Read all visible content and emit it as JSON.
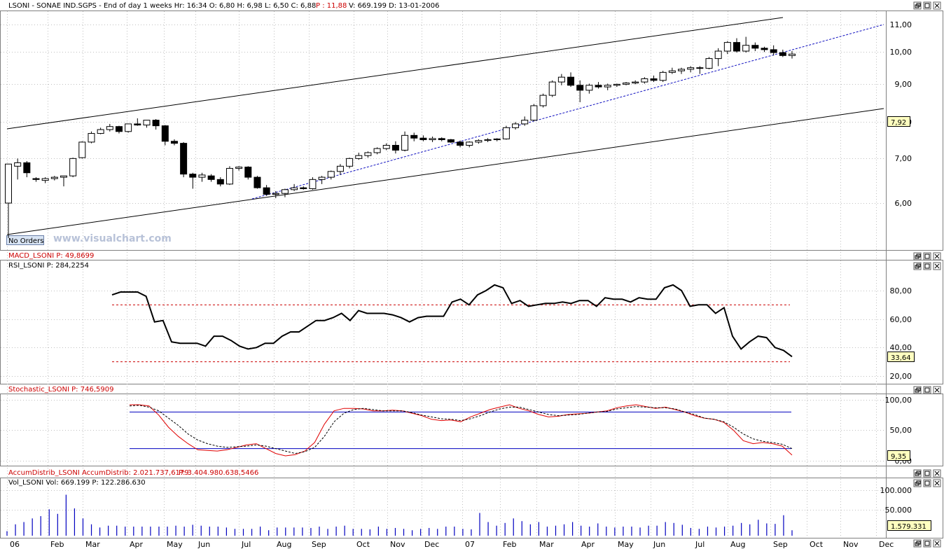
{
  "header": {
    "main": "LSONI - SONAE IND.SGPS - End of day 1 weeks Hr: 16:34  O: 6,80  H: 6,98  L: 6,50  C: 6,88",
    "main_p": "P : 11,88",
    "main_rest": "V: 669.199  D: 13-01-2006",
    "macd": "MACD_LSONI  P: 49,8699",
    "rsi": "RSI_LSONI  P: 284,2254",
    "stoch": "Stochastic_LSONI  P: 746,5909",
    "accum_a": "AccumDistrib_LSONI  AccumDistrib: 2.021.737,6179",
    "accum_b": "P: 3.404.980.638,5466",
    "vol": "Vol_LSONI  Vol: 669.199   P: 122.286.630"
  },
  "watermark": "www.visualchart.com",
  "no_orders": "No Orders",
  "colors": {
    "up_candle": "#ffffff",
    "down_candle": "#000000",
    "channel": "#000000",
    "dotted_trend": "#1010c0",
    "rsi_line": "#000000",
    "rsi_levels": "#cc0000",
    "stoch_k": "#e00000",
    "stoch_d": "#000000",
    "stoch_levels": "#0000c0",
    "volume": "#0000c0",
    "last_value_bg": "#ffffc0"
  },
  "x_labels": [
    "06",
    "Feb",
    "Mar",
    "Apr",
    "May",
    "Jun",
    "Jul",
    "Aug",
    "Sep",
    "Oct",
    "Nov",
    "Dec",
    "07",
    "Feb",
    "Mar",
    "Apr",
    "May",
    "Jun",
    "Jul",
    "Aug",
    "Sep",
    "Oct",
    "Nov",
    "Dec"
  ],
  "chart_data": [
    {
      "type": "candlestick",
      "title": "LSONI - SONAE IND.SGPS",
      "y_scale": "log",
      "ylim": [
        5.3,
        11.4
      ],
      "y_ticks": [
        "11,00",
        "10,00",
        "9,00",
        "8,00",
        "7,00",
        "6,00"
      ],
      "last_value": "7,92",
      "ohlc": [
        [
          6.0,
          6.8,
          5.33,
          6.85
        ],
        [
          6.8,
          6.98,
          6.5,
          6.88
        ],
        [
          6.88,
          6.92,
          6.55,
          6.65
        ],
        [
          6.52,
          6.55,
          6.45,
          6.5
        ],
        [
          6.48,
          6.55,
          6.42,
          6.52
        ],
        [
          6.52,
          6.58,
          6.48,
          6.55
        ],
        [
          6.55,
          6.58,
          6.35,
          6.58
        ],
        [
          6.58,
          7.0,
          6.55,
          6.98
        ],
        [
          7.0,
          7.4,
          6.98,
          7.38
        ],
        [
          7.38,
          7.65,
          7.35,
          7.6
        ],
        [
          7.6,
          7.75,
          7.58,
          7.7
        ],
        [
          7.7,
          7.85,
          7.65,
          7.78
        ],
        [
          7.78,
          7.8,
          7.6,
          7.65
        ],
        [
          7.65,
          7.85,
          7.62,
          7.85
        ],
        [
          7.85,
          8.0,
          7.8,
          7.82
        ],
        [
          7.82,
          7.95,
          7.75,
          7.95
        ],
        [
          7.95,
          7.98,
          7.7,
          7.8
        ],
        [
          7.8,
          7.82,
          7.3,
          7.4
        ],
        [
          7.4,
          7.45,
          7.3,
          7.35
        ],
        [
          7.35,
          7.38,
          6.55,
          6.62
        ],
        [
          6.62,
          6.65,
          6.3,
          6.55
        ],
        [
          6.55,
          6.65,
          6.45,
          6.6
        ],
        [
          6.58,
          6.62,
          6.45,
          6.5
        ],
        [
          6.5,
          6.55,
          6.35,
          6.4
        ],
        [
          6.4,
          6.8,
          6.38,
          6.75
        ],
        [
          6.75,
          6.8,
          6.7,
          6.78
        ],
        [
          6.78,
          6.8,
          6.5,
          6.55
        ],
        [
          6.55,
          6.58,
          6.3,
          6.32
        ],
        [
          6.32,
          6.38,
          6.15,
          6.18
        ],
        [
          6.18,
          6.25,
          6.1,
          6.2
        ],
        [
          6.2,
          6.3,
          6.12,
          6.28
        ],
        [
          6.28,
          6.4,
          6.25,
          6.32
        ],
        [
          6.32,
          6.35,
          6.28,
          6.3
        ],
        [
          6.3,
          6.55,
          6.28,
          6.5
        ],
        [
          6.5,
          6.58,
          6.4,
          6.55
        ],
        [
          6.55,
          6.7,
          6.5,
          6.68
        ],
        [
          6.68,
          6.85,
          6.6,
          6.8
        ],
        [
          6.8,
          7.0,
          6.75,
          6.98
        ],
        [
          6.98,
          7.12,
          6.95,
          7.05
        ],
        [
          7.05,
          7.15,
          7.0,
          7.12
        ],
        [
          7.12,
          7.25,
          7.08,
          7.22
        ],
        [
          7.22,
          7.35,
          7.18,
          7.3
        ],
        [
          7.3,
          7.4,
          7.1,
          7.18
        ],
        [
          7.18,
          7.65,
          7.15,
          7.55
        ],
        [
          7.55,
          7.62,
          7.4,
          7.48
        ],
        [
          7.48,
          7.55,
          7.4,
          7.44
        ],
        [
          7.44,
          7.52,
          7.38,
          7.47
        ],
        [
          7.47,
          7.5,
          7.4,
          7.44
        ],
        [
          7.44,
          7.46,
          7.36,
          7.38
        ],
        [
          7.38,
          7.42,
          7.25,
          7.3
        ],
        [
          7.3,
          7.4,
          7.25,
          7.38
        ],
        [
          7.38,
          7.45,
          7.34,
          7.42
        ],
        [
          7.42,
          7.48,
          7.38,
          7.44
        ],
        [
          7.44,
          7.48,
          7.4,
          7.46
        ],
        [
          7.46,
          7.8,
          7.44,
          7.75
        ],
        [
          7.75,
          7.9,
          7.7,
          7.85
        ],
        [
          7.85,
          8.05,
          7.8,
          7.95
        ],
        [
          7.95,
          8.4,
          7.92,
          8.35
        ],
        [
          8.35,
          8.7,
          8.3,
          8.65
        ],
        [
          8.65,
          9.1,
          8.6,
          9.05
        ],
        [
          9.05,
          9.3,
          8.95,
          9.2
        ],
        [
          9.2,
          9.35,
          8.9,
          8.95
        ],
        [
          8.95,
          9.1,
          8.45,
          8.8
        ],
        [
          8.8,
          9.0,
          8.7,
          8.95
        ],
        [
          8.95,
          9.05,
          8.85,
          8.9
        ],
        [
          8.9,
          9.0,
          8.8,
          8.95
        ],
        [
          8.95,
          9.0,
          8.9,
          8.98
        ],
        [
          8.98,
          9.05,
          8.95,
          9.02
        ],
        [
          9.02,
          9.1,
          8.98,
          9.05
        ],
        [
          9.05,
          9.2,
          9.0,
          9.15
        ],
        [
          9.15,
          9.25,
          9.05,
          9.1
        ],
        [
          9.1,
          9.4,
          9.05,
          9.35
        ],
        [
          9.35,
          9.5,
          9.3,
          9.4
        ],
        [
          9.4,
          9.5,
          9.3,
          9.45
        ],
        [
          9.45,
          9.55,
          9.35,
          9.5
        ],
        [
          9.5,
          9.55,
          9.3,
          9.48
        ],
        [
          9.48,
          9.85,
          9.45,
          9.8
        ],
        [
          9.8,
          10.15,
          9.55,
          10.05
        ],
        [
          10.05,
          10.4,
          9.95,
          10.35
        ],
        [
          10.35,
          10.5,
          10.0,
          10.05
        ],
        [
          10.05,
          10.55,
          10.0,
          10.25
        ],
        [
          10.25,
          10.35,
          10.05,
          10.15
        ],
        [
          10.15,
          10.2,
          10.02,
          10.1
        ],
        [
          10.1,
          10.25,
          9.9,
          10.0
        ],
        [
          10.0,
          10.1,
          9.85,
          9.9
        ],
        [
          9.9,
          10.05,
          9.8,
          9.95
        ]
      ]
    },
    {
      "type": "line",
      "title": "RSI_LSONI",
      "ylim": [
        15,
        90
      ],
      "y_ticks": [
        "80,00",
        "60,00",
        "40,00",
        "20,00"
      ],
      "levels": [
        70,
        30
      ],
      "last_value": "33,64",
      "values": [
        77,
        79,
        79,
        79,
        76,
        58,
        59,
        44,
        43,
        43,
        43,
        41,
        48,
        48,
        45,
        41,
        39,
        40,
        43,
        43,
        48,
        51,
        51,
        55,
        59,
        59,
        61,
        64,
        59,
        66,
        64,
        64,
        64,
        63,
        61,
        58,
        61,
        62,
        62,
        62,
        72,
        74,
        70,
        77,
        80,
        84,
        82,
        71,
        73,
        69,
        70,
        71,
        71,
        72,
        71,
        73,
        73,
        69,
        75,
        74,
        74,
        72,
        75,
        74,
        74,
        82,
        84,
        80,
        69,
        70,
        70,
        64,
        68,
        48,
        39,
        44,
        48,
        47,
        40,
        38,
        33.64
      ]
    },
    {
      "type": "line",
      "title": "Stochastic_LSONI",
      "ylim": [
        0,
        100
      ],
      "y_ticks": [
        "100,00",
        "50,00",
        "0,00"
      ],
      "levels": [
        80,
        20
      ],
      "last_value": "9,35",
      "series": [
        {
          "name": "K",
          "values": [
            92,
            92,
            90,
            75,
            55,
            40,
            28,
            18,
            17,
            16,
            18,
            22,
            26,
            28,
            20,
            12,
            8,
            10,
            16,
            30,
            60,
            82,
            86,
            86,
            85,
            82,
            82,
            83,
            82,
            78,
            74,
            68,
            66,
            67,
            64,
            72,
            78,
            84,
            88,
            92,
            86,
            82,
            76,
            72,
            73,
            76,
            77,
            78,
            80,
            82,
            87,
            90,
            92,
            89,
            86,
            88,
            84,
            80,
            74,
            70,
            68,
            63,
            50,
            33,
            28,
            30,
            28,
            24,
            9.35
          ]
        },
        {
          "name": "D",
          "values": [
            90,
            91,
            88,
            82,
            70,
            58,
            44,
            34,
            28,
            24,
            22,
            23,
            24,
            26,
            24,
            20,
            16,
            12,
            15,
            22,
            40,
            64,
            78,
            84,
            86,
            84,
            82,
            82,
            82,
            79,
            75,
            72,
            69,
            68,
            66,
            69,
            74,
            80,
            85,
            88,
            88,
            84,
            80,
            76,
            74,
            75,
            76,
            78,
            80,
            81,
            85,
            87,
            89,
            88,
            87,
            87,
            85,
            80,
            76,
            70,
            68,
            64,
            55,
            44,
            36,
            32,
            30,
            27,
            20
          ]
        }
      ]
    },
    {
      "type": "bar",
      "title": "Vol_LSONI",
      "ylim": [
        0,
        100000
      ],
      "y_ticks": [
        "100.000",
        "50.000"
      ],
      "last_value": "1.579.331",
      "values": [
        10,
        25,
        30,
        38,
        43,
        58,
        48,
        90,
        60,
        38,
        25,
        18,
        22,
        22,
        20,
        20,
        20,
        20,
        20,
        20,
        22,
        20,
        24,
        22,
        20,
        20,
        18,
        15,
        15,
        15,
        20,
        12,
        18,
        18,
        18,
        18,
        17,
        20,
        15,
        20,
        22,
        15,
        15,
        14,
        20,
        15,
        17,
        15,
        12,
        15,
        17,
        15,
        20,
        20,
        15,
        14,
        50,
        30,
        22,
        28,
        38,
        32,
        25,
        30,
        20,
        22,
        25,
        30,
        22,
        20,
        27,
        20,
        18,
        20,
        20,
        18,
        22,
        22,
        30,
        28,
        24,
        17,
        15,
        20,
        18,
        20,
        22,
        28,
        25,
        35,
        27,
        26,
        45,
        12
      ]
    }
  ]
}
